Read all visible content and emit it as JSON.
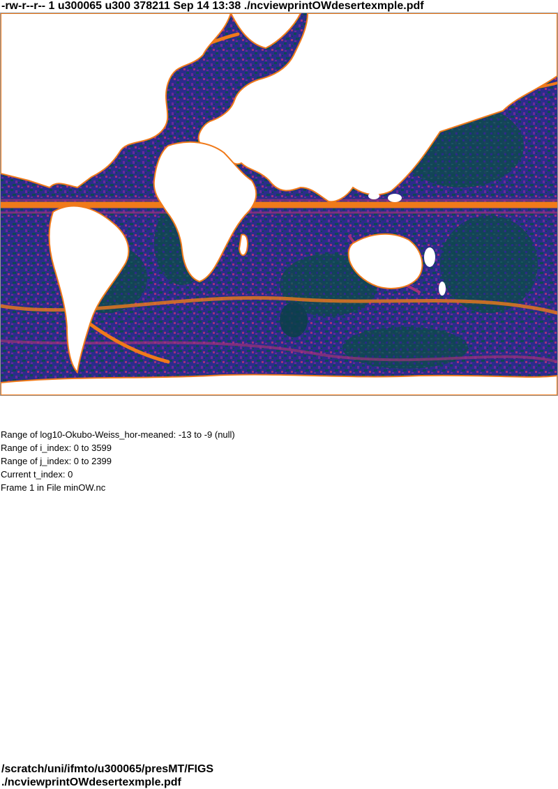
{
  "header": {
    "listing": "-rw-r--r-- 1 u300065 u300 378211 Sep 14 13:38 ./ncviewprintOWdesertexmple.pdf"
  },
  "map": {
    "colors": {
      "background": "#ffffff",
      "ocean_dark": "#0e4a52",
      "ocean_navy": "#2a2a8a",
      "ocean_purple": "#6a2a9a",
      "magenta": "#a0307a",
      "orange": "#f07a1a",
      "land": "#ffffff"
    }
  },
  "info": {
    "line1": "Range of log10-Okubo-Weiss_hor-meaned: -13 to -9 (null)",
    "line2": "Range of i_index: 0 to 3599",
    "line3": "Range of j_index: 0 to 2399",
    "line4": "Current t_index: 0",
    "line5": "Frame 1 in File minOW.nc"
  },
  "footer": {
    "path": "/scratch/uni/ifmto/u300065/presMT/FIGS",
    "file": "./ncviewprintOWdesertexmple.pdf"
  }
}
